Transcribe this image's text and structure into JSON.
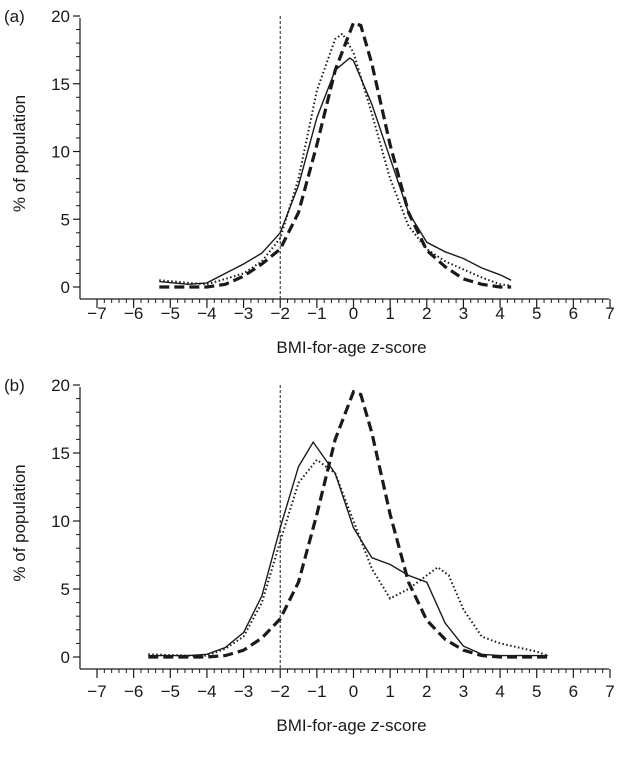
{
  "chart_data": [
    {
      "type": "line",
      "panel_label": "(a)",
      "xlabel_prefix": "BMI-for-age ",
      "xlabel_italic": "z",
      "xlabel_suffix": "-score",
      "ylabel": "% of population",
      "xlim": [
        -7,
        7
      ],
      "ylim": [
        0,
        20
      ],
      "x_ticks": [
        -7,
        -6,
        -5,
        -4,
        -3,
        -2,
        -1,
        0,
        1,
        2,
        3,
        4,
        5,
        6,
        7
      ],
      "y_ticks": [
        0,
        5,
        10,
        15,
        20
      ],
      "reference_line_x": -2,
      "grid": false,
      "series": [
        {
          "style": "solid",
          "points": [
            [
              -5.3,
              0.4
            ],
            [
              -4.5,
              0.2
            ],
            [
              -4.0,
              0.3
            ],
            [
              -3.5,
              1.0
            ],
            [
              -3.0,
              1.7
            ],
            [
              -2.5,
              2.5
            ],
            [
              -2.0,
              4.0
            ],
            [
              -1.5,
              7.5
            ],
            [
              -1.0,
              12.5
            ],
            [
              -0.5,
              16.0
            ],
            [
              -0.1,
              16.9
            ],
            [
              0.0,
              16.7
            ],
            [
              0.5,
              13.5
            ],
            [
              1.0,
              9.5
            ],
            [
              1.5,
              5.5
            ],
            [
              2.0,
              3.3
            ],
            [
              2.5,
              2.6
            ],
            [
              3.0,
              2.1
            ],
            [
              3.5,
              1.4
            ],
            [
              4.0,
              0.9
            ],
            [
              4.3,
              0.5
            ]
          ]
        },
        {
          "style": "dotted",
          "points": [
            [
              -5.3,
              0.5
            ],
            [
              -4.5,
              0.3
            ],
            [
              -4.0,
              0.2
            ],
            [
              -3.5,
              0.6
            ],
            [
              -3.0,
              1.0
            ],
            [
              -2.5,
              1.9
            ],
            [
              -2.0,
              3.6
            ],
            [
              -1.5,
              8.0
            ],
            [
              -1.0,
              14.5
            ],
            [
              -0.5,
              18.3
            ],
            [
              -0.3,
              18.7
            ],
            [
              0.0,
              17.3
            ],
            [
              0.5,
              12.8
            ],
            [
              1.0,
              8.0
            ],
            [
              1.5,
              4.5
            ],
            [
              2.0,
              2.8
            ],
            [
              2.5,
              1.9
            ],
            [
              3.0,
              1.3
            ],
            [
              3.5,
              0.7
            ],
            [
              4.0,
              0.2
            ],
            [
              4.3,
              0.1
            ]
          ]
        },
        {
          "style": "dashed",
          "points": [
            [
              -5.3,
              0.0
            ],
            [
              -4.5,
              0.0
            ],
            [
              -4.0,
              0.0
            ],
            [
              -3.5,
              0.2
            ],
            [
              -3.0,
              0.8
            ],
            [
              -2.5,
              1.7
            ],
            [
              -2.0,
              2.8
            ],
            [
              -1.5,
              5.5
            ],
            [
              -1.0,
              10.5
            ],
            [
              -0.5,
              16.0
            ],
            [
              0.0,
              19.5
            ],
            [
              0.2,
              19.3
            ],
            [
              0.5,
              16.5
            ],
            [
              1.0,
              10.5
            ],
            [
              1.5,
              5.5
            ],
            [
              2.0,
              2.7
            ],
            [
              2.5,
              1.5
            ],
            [
              3.0,
              0.6
            ],
            [
              3.5,
              0.2
            ],
            [
              4.0,
              0.0
            ],
            [
              4.3,
              0.0
            ]
          ]
        }
      ]
    },
    {
      "type": "line",
      "panel_label": "(b)",
      "xlabel_prefix": "BMI-for-age ",
      "xlabel_italic": "z",
      "xlabel_suffix": "-score",
      "ylabel": "% of population",
      "xlim": [
        -7,
        7
      ],
      "ylim": [
        0,
        20
      ],
      "x_ticks": [
        -7,
        -6,
        -5,
        -4,
        -3,
        -2,
        -1,
        0,
        1,
        2,
        3,
        4,
        5,
        6,
        7
      ],
      "y_ticks": [
        0,
        5,
        10,
        15,
        20
      ],
      "reference_line_x": -2,
      "grid": false,
      "series": [
        {
          "style": "solid",
          "points": [
            [
              -5.6,
              0.1
            ],
            [
              -4.5,
              0.1
            ],
            [
              -4.0,
              0.2
            ],
            [
              -3.5,
              0.7
            ],
            [
              -3.0,
              1.8
            ],
            [
              -2.5,
              4.5
            ],
            [
              -2.0,
              9.5
            ],
            [
              -1.5,
              14.0
            ],
            [
              -1.1,
              15.8
            ],
            [
              -0.5,
              13.5
            ],
            [
              0.0,
              9.5
            ],
            [
              0.5,
              7.3
            ],
            [
              1.0,
              6.8
            ],
            [
              1.5,
              6.0
            ],
            [
              2.0,
              5.5
            ],
            [
              2.5,
              2.5
            ],
            [
              3.0,
              0.8
            ],
            [
              3.5,
              0.2
            ],
            [
              4.0,
              0.1
            ],
            [
              5.3,
              0.1
            ]
          ]
        },
        {
          "style": "dotted",
          "points": [
            [
              -5.6,
              0.2
            ],
            [
              -4.5,
              0.1
            ],
            [
              -4.0,
              0.1
            ],
            [
              -3.5,
              0.6
            ],
            [
              -3.0,
              1.5
            ],
            [
              -2.5,
              4.0
            ],
            [
              -2.0,
              8.5
            ],
            [
              -1.5,
              12.8
            ],
            [
              -1.0,
              14.5
            ],
            [
              -0.5,
              13.5
            ],
            [
              0.0,
              10.0
            ],
            [
              0.5,
              6.5
            ],
            [
              1.0,
              4.3
            ],
            [
              1.5,
              5.0
            ],
            [
              2.0,
              6.0
            ],
            [
              2.3,
              6.6
            ],
            [
              2.6,
              6.0
            ],
            [
              3.0,
              3.5
            ],
            [
              3.5,
              1.5
            ],
            [
              4.0,
              1.0
            ],
            [
              4.5,
              0.7
            ],
            [
              5.0,
              0.4
            ],
            [
              5.3,
              0.1
            ]
          ]
        },
        {
          "style": "dashed",
          "points": [
            [
              -5.6,
              0.0
            ],
            [
              -4.5,
              0.0
            ],
            [
              -4.0,
              0.0
            ],
            [
              -3.5,
              0.1
            ],
            [
              -3.0,
              0.5
            ],
            [
              -2.5,
              1.4
            ],
            [
              -2.0,
              2.8
            ],
            [
              -1.5,
              5.5
            ],
            [
              -1.0,
              10.5
            ],
            [
              -0.5,
              16.0
            ],
            [
              0.0,
              19.5
            ],
            [
              0.2,
              19.3
            ],
            [
              0.5,
              16.5
            ],
            [
              1.0,
              10.5
            ],
            [
              1.5,
              5.5
            ],
            [
              2.0,
              2.7
            ],
            [
              2.5,
              1.3
            ],
            [
              3.0,
              0.5
            ],
            [
              3.5,
              0.1
            ],
            [
              4.0,
              0.0
            ],
            [
              5.3,
              0.0
            ]
          ]
        }
      ]
    }
  ]
}
